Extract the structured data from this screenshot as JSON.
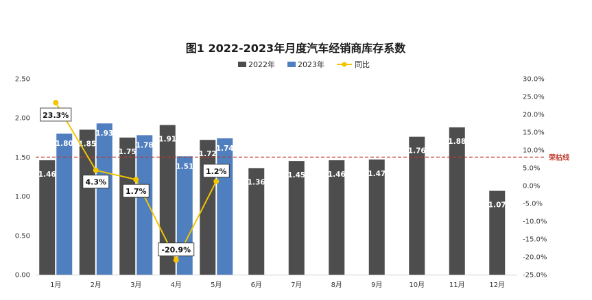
{
  "chart_data": {
    "type": "bar",
    "title": "图1  2022-2023年月度汽车经销商库存系数",
    "categories": [
      "1月",
      "2月",
      "3月",
      "4月",
      "5月",
      "6月",
      "7月",
      "8月",
      "9月",
      "10月",
      "11月",
      "12月"
    ],
    "series": [
      {
        "name": "2022年",
        "type": "bar",
        "axis": "left",
        "color": "#4d4d4d",
        "values": [
          1.46,
          1.85,
          1.75,
          1.91,
          1.72,
          1.36,
          1.45,
          1.46,
          1.47,
          1.76,
          1.88,
          1.07
        ]
      },
      {
        "name": "2023年",
        "type": "bar",
        "axis": "left",
        "color": "#4f7fbf",
        "values": [
          1.8,
          1.93,
          1.78,
          1.51,
          1.74,
          null,
          null,
          null,
          null,
          null,
          null,
          null
        ]
      },
      {
        "name": "同比",
        "type": "line",
        "axis": "right",
        "color": "#f2c500",
        "values": [
          23.3,
          4.3,
          1.7,
          -20.9,
          1.2,
          null,
          null,
          null,
          null,
          null,
          null,
          null
        ],
        "labels": [
          "23.3%",
          "4.3%",
          "1.7%",
          "-20.9%",
          "1.2%"
        ]
      }
    ],
    "bar_labels_2022": [
      "1.46",
      "1.85",
      "1.75",
      "1.91",
      "1.72",
      "1.36",
      "1.45",
      "1.46",
      "1.47",
      "1.76",
      "1.88",
      "1.07"
    ],
    "bar_labels_2023": [
      "1.80",
      "1.93",
      "1.78",
      "1.51",
      "1.74"
    ],
    "y_left": {
      "range": [
        0,
        2.5
      ],
      "ticks": [
        "0.00",
        "0.50",
        "1.00",
        "1.50",
        "2.00",
        "2.50"
      ]
    },
    "y_right": {
      "range": [
        -25,
        30
      ],
      "ticks": [
        "-25.0%",
        "-20.0%",
        "-15.0%",
        "-10.0%",
        "-5.0%",
        "0.0%",
        "5.0%",
        "10.0%",
        "15.0%",
        "20.0%",
        "25.0%",
        "30.0%"
      ]
    },
    "reference_line": {
      "value": 1.5,
      "label": "荣枯线",
      "color": "#c0392b"
    },
    "legend": {
      "position": "top"
    },
    "grid": false
  }
}
